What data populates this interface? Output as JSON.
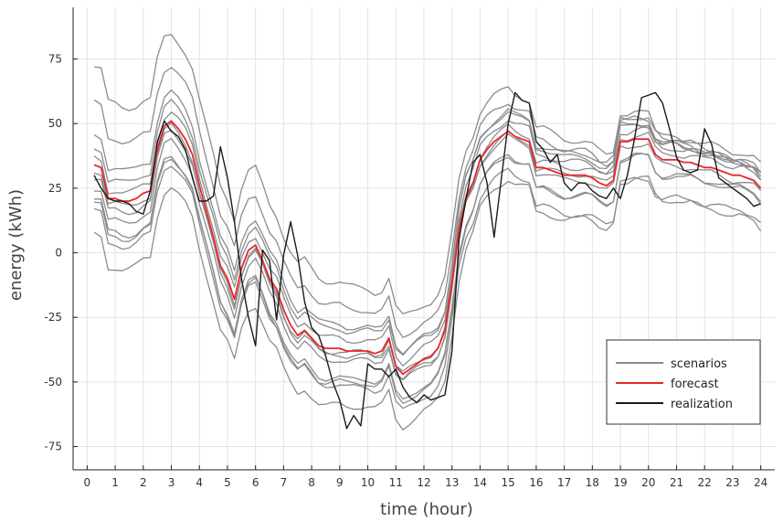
{
  "chart_data": {
    "type": "line",
    "title": "",
    "xlabel": "time (hour)",
    "ylabel": "energy (kWh)",
    "xlim": [
      -0.5,
      24.5
    ],
    "ylim": [
      -84,
      95
    ],
    "xticks": [
      0,
      1,
      2,
      3,
      4,
      5,
      6,
      7,
      8,
      9,
      10,
      11,
      12,
      13,
      14,
      15,
      16,
      17,
      18,
      19,
      20,
      21,
      22,
      23,
      24
    ],
    "yticks": [
      75,
      50,
      25,
      0,
      -25,
      -50,
      -75
    ],
    "grid": true,
    "legend_position": "bottom-right",
    "legend": [
      {
        "label": "scenarios",
        "color": "#8c8c8c"
      },
      {
        "label": "forecast",
        "color": "#e8272b"
      },
      {
        "label": "realization",
        "color": "#1a1a1a"
      }
    ],
    "x": [
      0.25,
      0.5,
      0.75,
      1,
      1.25,
      1.5,
      1.75,
      2,
      2.25,
      2.5,
      2.75,
      3,
      3.25,
      3.5,
      3.75,
      4,
      4.25,
      4.5,
      4.75,
      5,
      5.25,
      5.5,
      5.75,
      6,
      6.25,
      6.5,
      6.75,
      7,
      7.25,
      7.5,
      7.75,
      8,
      8.25,
      8.5,
      8.75,
      9,
      9.25,
      9.5,
      9.75,
      10,
      10.25,
      10.5,
      10.75,
      11,
      11.25,
      11.5,
      11.75,
      12,
      12.25,
      12.5,
      12.75,
      13,
      13.25,
      13.5,
      13.75,
      14,
      14.25,
      14.5,
      14.75,
      15,
      15.25,
      15.5,
      15.75,
      16,
      16.25,
      16.5,
      16.75,
      17,
      17.25,
      17.5,
      17.75,
      18,
      18.25,
      18.5,
      18.75,
      19,
      19.25,
      19.5,
      19.75,
      20,
      20.25,
      20.5,
      20.75,
      21,
      21.25,
      21.5,
      21.75,
      22,
      22.25,
      22.5,
      22.75,
      23,
      23.25,
      23.5,
      23.75,
      24
    ],
    "base_profile": [
      34,
      33,
      21,
      21,
      20,
      20,
      21,
      23,
      24,
      40,
      49,
      51,
      48,
      44,
      38,
      26,
      16,
      6,
      -5,
      -10,
      -18,
      -6,
      1,
      3,
      -3,
      -10,
      -14,
      -22,
      -28,
      -32,
      -30,
      -33,
      -36,
      -37,
      -37,
      -37,
      -38,
      -38,
      -38,
      -38,
      -39,
      -38,
      -33,
      -44,
      -47,
      -45,
      -43,
      -41,
      -40,
      -37,
      -30,
      -12,
      9,
      21,
      27,
      36,
      40,
      43,
      45,
      47,
      45,
      44,
      43,
      33,
      33,
      32,
      31,
      30,
      30,
      30,
      30,
      29,
      27,
      26,
      28,
      43,
      43,
      44,
      44,
      44,
      38,
      36,
      36,
      36,
      35,
      35,
      34,
      33,
      33,
      32,
      31,
      30,
      30,
      29,
      28,
      25
    ],
    "series": [
      {
        "name": "forecast",
        "role": "forecast",
        "values": [
          34,
          33,
          21,
          21,
          20,
          20,
          21,
          23,
          24,
          40,
          49,
          51,
          48,
          44,
          38,
          26,
          16,
          6,
          -5,
          -10,
          -18,
          -6,
          1,
          3,
          -3,
          -10,
          -14,
          -22,
          -28,
          -32,
          -30,
          -33,
          -36,
          -37,
          -37,
          -37,
          -38,
          -38,
          -38,
          -38,
          -39,
          -38,
          -33,
          -44,
          -47,
          -45,
          -43,
          -41,
          -40,
          -37,
          -30,
          -12,
          9,
          21,
          27,
          36,
          40,
          43,
          45,
          47,
          45,
          44,
          43,
          33,
          33,
          32,
          31,
          30,
          30,
          30,
          30,
          29,
          27,
          26,
          28,
          43,
          43,
          44,
          44,
          44,
          38,
          36,
          36,
          36,
          35,
          35,
          34,
          33,
          33,
          32,
          31,
          30,
          30,
          29,
          28,
          25
        ]
      },
      {
        "name": "realization",
        "role": "realization",
        "values": [
          30,
          25,
          21,
          20,
          20,
          19,
          16,
          15,
          24,
          43,
          51,
          47,
          45,
          40,
          29,
          20,
          20,
          22,
          41,
          29,
          12,
          -10,
          -25,
          -36,
          1,
          -3,
          -26,
          -1,
          12,
          -1,
          -19,
          -29,
          -32,
          -40,
          -50,
          -57,
          -68,
          -63,
          -67,
          -43,
          -45,
          -45,
          -48,
          -45,
          -52,
          -56,
          -58,
          -55,
          -57,
          -56,
          -55,
          -38,
          5,
          21,
          35,
          38,
          27,
          6,
          28,
          50,
          62,
          59,
          58,
          43,
          40,
          35,
          38,
          27,
          24,
          27,
          27,
          24,
          22,
          21,
          25,
          21,
          30,
          44,
          60,
          61,
          62,
          58,
          48,
          37,
          32,
          31,
          32,
          48,
          42,
          29,
          27,
          25,
          23,
          21,
          18,
          19
        ]
      }
    ],
    "scenario_offsets": [
      38,
      24,
      12,
      -9,
      -15,
      -27,
      7,
      -5,
      -18,
      3,
      -2,
      -13
    ],
    "scenario_offset_end": [
      4,
      4,
      5,
      4,
      -5,
      -13,
      9,
      6,
      -4,
      6,
      -2,
      -16
    ]
  }
}
